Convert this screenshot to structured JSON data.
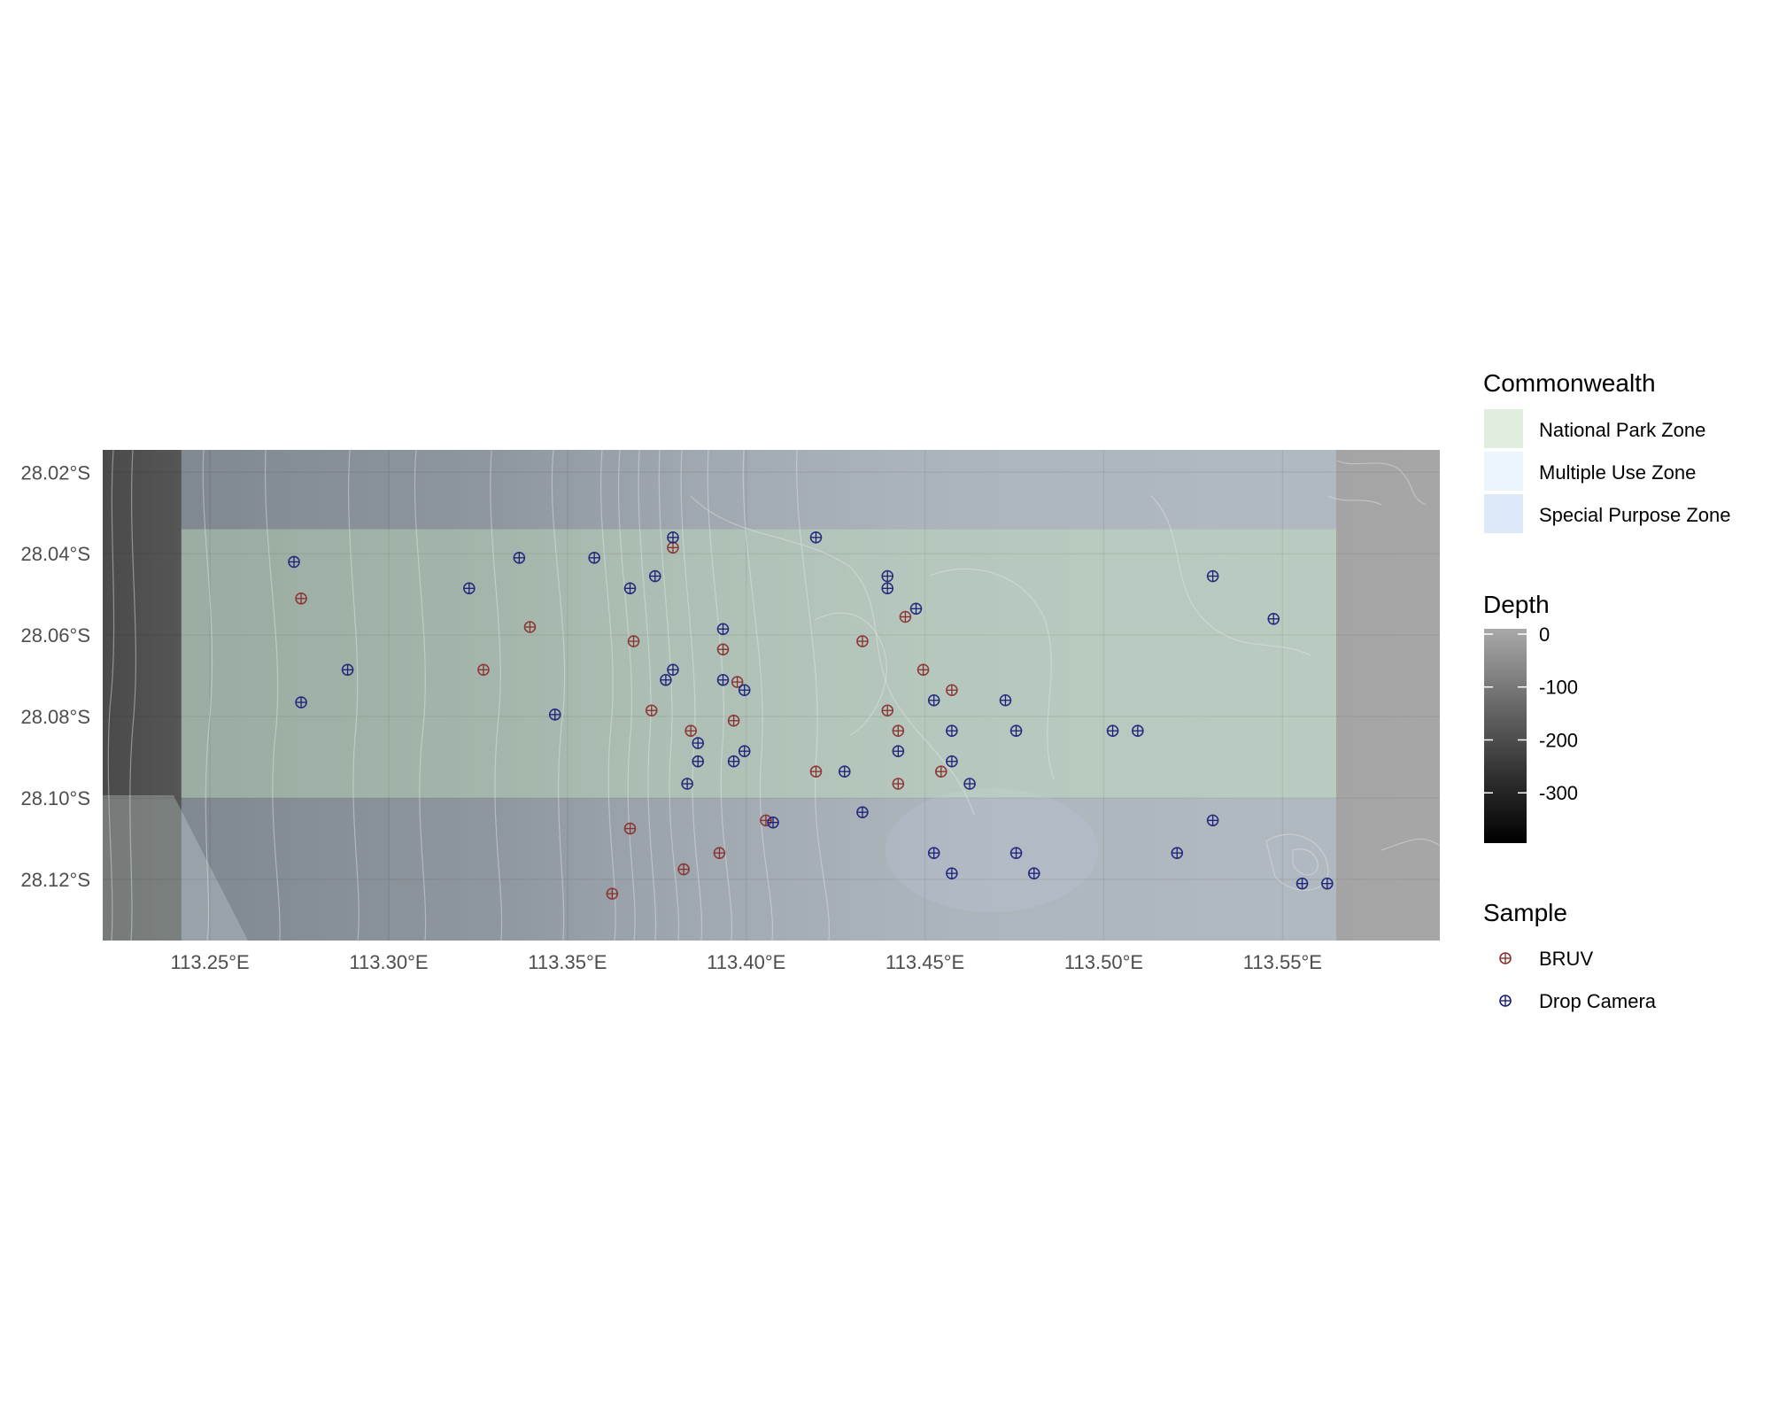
{
  "map": {
    "x_axis": {
      "range": [
        113.22,
        113.594
      ],
      "ticks": [
        113.25,
        113.3,
        113.35,
        113.4,
        113.45,
        113.5,
        113.55
      ],
      "tick_labels": [
        "113.25°E",
        "113.30°E",
        "113.35°E",
        "113.40°E",
        "113.45°E",
        "113.50°E",
        "113.55°E"
      ]
    },
    "y_axis": {
      "range": [
        28.135,
        28.0145
      ],
      "ticks": [
        28.02,
        28.04,
        28.06,
        28.08,
        28.1,
        28.12
      ],
      "tick_labels": [
        "28.02°S",
        "28.04°S",
        "28.06°S",
        "28.08°S",
        "28.10°S",
        "28.12°S"
      ]
    },
    "zones": [
      {
        "name": "Special Purpose Zone",
        "lon": [
          113.242,
          113.565
        ],
        "lat": [
          28.0145,
          28.135
        ],
        "color": "#c6dbef"
      },
      {
        "name": "National Park Zone",
        "lon": [
          113.242,
          113.565
        ],
        "lat": [
          28.034,
          28.1
        ],
        "color": "#c7e9c0"
      }
    ]
  },
  "legend": {
    "commonwealth": {
      "title": "Commonwealth",
      "items": [
        {
          "label": "National Park Zone",
          "color": "#dfeedd"
        },
        {
          "label": "Multiple Use Zone",
          "color": "#eaf6fb"
        },
        {
          "label": "Special Purpose Zone",
          "color": "#dde9f8"
        }
      ]
    },
    "depth": {
      "title": "Depth",
      "labels": [
        "0",
        "-100",
        "-200",
        "-300"
      ],
      "values": [
        0,
        -100,
        -200,
        -300
      ],
      "range": [
        -395,
        10
      ]
    },
    "sample": {
      "title": "Sample",
      "items": [
        {
          "label": "BRUV",
          "color": "#8b2e2e"
        },
        {
          "label": "Drop Camera",
          "color": "#1a1f7a"
        }
      ]
    }
  },
  "chart_data": {
    "type": "scatter",
    "series": [
      {
        "name": "BRUV",
        "color": "#8b2e2e",
        "points": [
          [
            113.2755,
            28.051
          ],
          [
            113.3265,
            28.0685
          ],
          [
            113.3395,
            28.058
          ],
          [
            113.3685,
            28.0615
          ],
          [
            113.3795,
            28.0385
          ],
          [
            113.3735,
            28.0785
          ],
          [
            113.3845,
            28.0835
          ],
          [
            113.3935,
            28.0635
          ],
          [
            113.3975,
            28.0715
          ],
          [
            113.3965,
            28.081
          ],
          [
            113.4055,
            28.1055
          ],
          [
            113.4195,
            28.0935
          ],
          [
            113.4325,
            28.0615
          ],
          [
            113.4445,
            28.0555
          ],
          [
            113.4495,
            28.0685
          ],
          [
            113.4575,
            28.0735
          ],
          [
            113.4395,
            28.0785
          ],
          [
            113.4425,
            28.0835
          ],
          [
            113.4425,
            28.0965
          ],
          [
            113.4545,
            28.0935
          ],
          [
            113.3675,
            28.1075
          ],
          [
            113.3625,
            28.1235
          ],
          [
            113.3825,
            28.1175
          ],
          [
            113.3925,
            28.1135
          ]
        ]
      },
      {
        "name": "Drop Camera",
        "color": "#1a1f7a",
        "points": [
          [
            113.2735,
            28.042
          ],
          [
            113.2885,
            28.0685
          ],
          [
            113.2755,
            28.0765
          ],
          [
            113.3225,
            28.0485
          ],
          [
            113.3365,
            28.041
          ],
          [
            113.3575,
            28.041
          ],
          [
            113.3675,
            28.0485
          ],
          [
            113.3745,
            28.0455
          ],
          [
            113.3795,
            28.036
          ],
          [
            113.3935,
            28.0585
          ],
          [
            113.3775,
            28.071
          ],
          [
            113.3795,
            28.0685
          ],
          [
            113.3935,
            28.071
          ],
          [
            113.3995,
            28.0735
          ],
          [
            113.3865,
            28.0865
          ],
          [
            113.3865,
            28.091
          ],
          [
            113.3995,
            28.0885
          ],
          [
            113.3965,
            28.091
          ],
          [
            113.3835,
            28.0965
          ],
          [
            113.4195,
            28.036
          ],
          [
            113.4395,
            28.0455
          ],
          [
            113.4395,
            28.0485
          ],
          [
            113.4475,
            28.0535
          ],
          [
            113.4525,
            28.076
          ],
          [
            113.4575,
            28.0835
          ],
          [
            113.4425,
            28.0885
          ],
          [
            113.4575,
            28.091
          ],
          [
            113.4625,
            28.0965
          ],
          [
            113.4275,
            28.0935
          ],
          [
            113.4725,
            28.076
          ],
          [
            113.4755,
            28.0835
          ],
          [
            113.3465,
            28.0795
          ],
          [
            113.4075,
            28.106
          ],
          [
            113.4325,
            28.1035
          ],
          [
            113.4525,
            28.1135
          ],
          [
            113.4575,
            28.1185
          ],
          [
            113.4755,
            28.1135
          ],
          [
            113.4805,
            28.1185
          ],
          [
            113.5025,
            28.0835
          ],
          [
            113.5095,
            28.0835
          ],
          [
            113.5305,
            28.0455
          ],
          [
            113.5475,
            28.056
          ],
          [
            113.5205,
            28.1135
          ],
          [
            113.5305,
            28.1055
          ],
          [
            113.5555,
            28.121
          ],
          [
            113.5625,
            28.121
          ]
        ]
      }
    ]
  }
}
